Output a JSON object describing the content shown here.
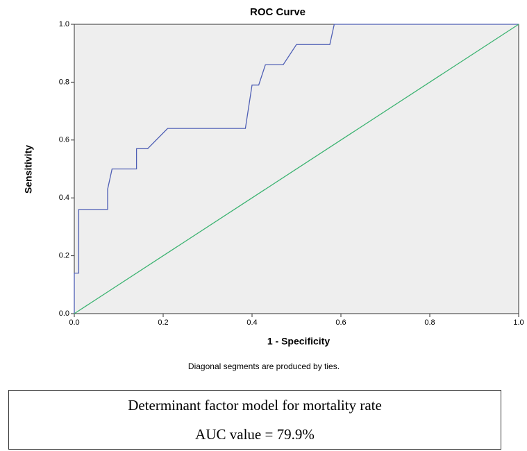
{
  "chart_data": {
    "type": "line",
    "title": "ROC Curve",
    "xlabel": "1 - Specificity",
    "ylabel": "Sensitivity",
    "note": "Diagonal segments are produced by ties.",
    "xlim": [
      0,
      1
    ],
    "ylim": [
      0,
      1
    ],
    "xticks": [
      {
        "value": 0,
        "label": "0.0"
      },
      {
        "value": 0.2,
        "label": "0.2"
      },
      {
        "value": 0.4,
        "label": "0.4"
      },
      {
        "value": 0.6,
        "label": "0.6"
      },
      {
        "value": 0.8,
        "label": "0.8"
      },
      {
        "value": 1,
        "label": "1.0"
      }
    ],
    "yticks": [
      {
        "value": 0,
        "label": "0.0"
      },
      {
        "value": 0.2,
        "label": "0.2"
      },
      {
        "value": 0.4,
        "label": "0.4"
      },
      {
        "value": 0.6,
        "label": "0.6"
      },
      {
        "value": 0.8,
        "label": "0.8"
      },
      {
        "value": 1,
        "label": "1.0"
      }
    ],
    "background": "#eeeeee",
    "series": [
      {
        "color": "#4f5fb5",
        "x": [
          0,
          0,
          0.01,
          0.01,
          0.075,
          0.075,
          0.085,
          0.14,
          0.14,
          0.165,
          0.21,
          0.385,
          0.4,
          0.415,
          0.43,
          0.47,
          0.5,
          0.575,
          0.585,
          1
        ],
        "values": [
          0,
          0.14,
          0.14,
          0.36,
          0.36,
          0.43,
          0.5,
          0.5,
          0.57,
          0.57,
          0.64,
          0.64,
          0.79,
          0.79,
          0.86,
          0.86,
          0.93,
          0.93,
          1,
          1
        ]
      },
      {
        "color": "#3cb371",
        "x": [
          0,
          1
        ],
        "values": [
          0,
          1
        ]
      }
    ]
  },
  "box": {
    "title": "Determinant factor model for mortality rate",
    "text": "AUC value = 79.9%"
  }
}
